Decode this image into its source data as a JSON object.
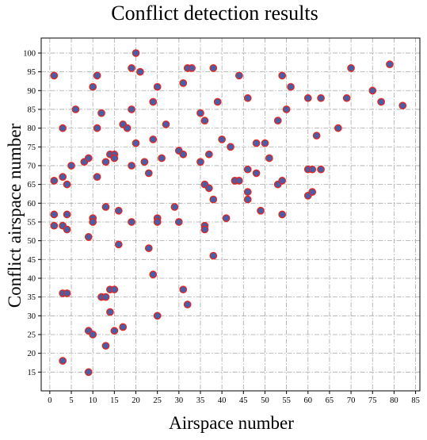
{
  "chart_data": {
    "type": "scatter",
    "title": "Conflict detection results",
    "xlabel": "Airspace number",
    "ylabel": "Conflict airspace number",
    "xlim": [
      -2,
      86
    ],
    "ylim": [
      10,
      104
    ],
    "xticks": [
      0,
      5,
      10,
      15,
      20,
      25,
      30,
      35,
      40,
      45,
      50,
      55,
      60,
      65,
      70,
      75,
      80,
      85
    ],
    "yticks": [
      15,
      20,
      25,
      30,
      35,
      40,
      45,
      50,
      55,
      60,
      65,
      70,
      75,
      80,
      85,
      90,
      95,
      100
    ],
    "grid": true,
    "marker_fill": "#4a5ea8",
    "marker_edge": "#e8231a",
    "points": [
      [
        1,
        94
      ],
      [
        1,
        66
      ],
      [
        1,
        57
      ],
      [
        1,
        54
      ],
      [
        3,
        80
      ],
      [
        3,
        67
      ],
      [
        3,
        54
      ],
      [
        3,
        36
      ],
      [
        3,
        18
      ],
      [
        4,
        65
      ],
      [
        4,
        57
      ],
      [
        4,
        53
      ],
      [
        4,
        36
      ],
      [
        5,
        70
      ],
      [
        6,
        85
      ],
      [
        8,
        71
      ],
      [
        9,
        72
      ],
      [
        9,
        51
      ],
      [
        9,
        26
      ],
      [
        9,
        15
      ],
      [
        10,
        91
      ],
      [
        10,
        56
      ],
      [
        10,
        55
      ],
      [
        10,
        25
      ],
      [
        11,
        94
      ],
      [
        11,
        80
      ],
      [
        11,
        67
      ],
      [
        12,
        84
      ],
      [
        12,
        35
      ],
      [
        13,
        71
      ],
      [
        13,
        59
      ],
      [
        13,
        35
      ],
      [
        13,
        22
      ],
      [
        14,
        73
      ],
      [
        14,
        37
      ],
      [
        14,
        31
      ],
      [
        15,
        73
      ],
      [
        15,
        72
      ],
      [
        15,
        37
      ],
      [
        15,
        26
      ],
      [
        16,
        58
      ],
      [
        16,
        49
      ],
      [
        17,
        81
      ],
      [
        17,
        27
      ],
      [
        18,
        80
      ],
      [
        19,
        85
      ],
      [
        19,
        70
      ],
      [
        19,
        55
      ],
      [
        19,
        96
      ],
      [
        20,
        100
      ],
      [
        20,
        76
      ],
      [
        21,
        95
      ],
      [
        22,
        71
      ],
      [
        23,
        68
      ],
      [
        23,
        48
      ],
      [
        24,
        87
      ],
      [
        24,
        77
      ],
      [
        24,
        41
      ],
      [
        25,
        91
      ],
      [
        25,
        56
      ],
      [
        25,
        55
      ],
      [
        25,
        30
      ],
      [
        26,
        72
      ],
      [
        27,
        81
      ],
      [
        29,
        59
      ],
      [
        30,
        74
      ],
      [
        30,
        55
      ],
      [
        31,
        92
      ],
      [
        31,
        73
      ],
      [
        31,
        37
      ],
      [
        32,
        96
      ],
      [
        32,
        33
      ],
      [
        33,
        96
      ],
      [
        35,
        84
      ],
      [
        35,
        71
      ],
      [
        36,
        82
      ],
      [
        36,
        65
      ],
      [
        36,
        54
      ],
      [
        36,
        53
      ],
      [
        37,
        73
      ],
      [
        37,
        64
      ],
      [
        38,
        96
      ],
      [
        38,
        61
      ],
      [
        38,
        46
      ],
      [
        39,
        87
      ],
      [
        40,
        77
      ],
      [
        41,
        56
      ],
      [
        42,
        75
      ],
      [
        43,
        66
      ],
      [
        44,
        94
      ],
      [
        44,
        66
      ],
      [
        46,
        88
      ],
      [
        46,
        69
      ],
      [
        46,
        63
      ],
      [
        46,
        61
      ],
      [
        48,
        76
      ],
      [
        48,
        68
      ],
      [
        49,
        58
      ],
      [
        50,
        76
      ],
      [
        51,
        72
      ],
      [
        53,
        82
      ],
      [
        53,
        65
      ],
      [
        54,
        94
      ],
      [
        54,
        66
      ],
      [
        54,
        57
      ],
      [
        55,
        85
      ],
      [
        56,
        91
      ],
      [
        60,
        88
      ],
      [
        60,
        69
      ],
      [
        60,
        62
      ],
      [
        61,
        69
      ],
      [
        61,
        63
      ],
      [
        62,
        78
      ],
      [
        63,
        88
      ],
      [
        63,
        69
      ],
      [
        67,
        80
      ],
      [
        69,
        88
      ],
      [
        70,
        96
      ],
      [
        75,
        90
      ],
      [
        77,
        87
      ],
      [
        79,
        97
      ],
      [
        82,
        86
      ]
    ]
  }
}
